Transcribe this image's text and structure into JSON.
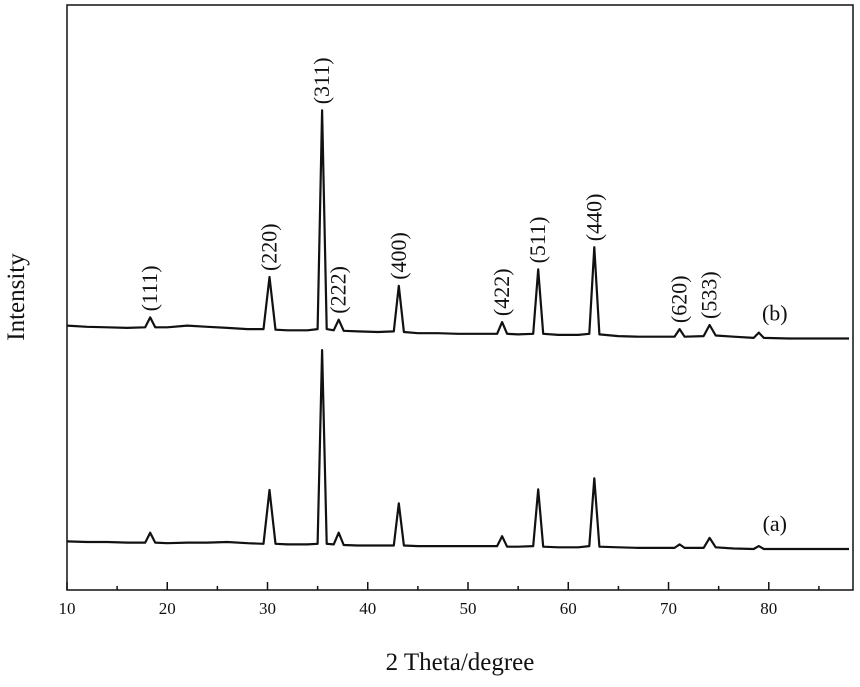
{
  "chart_data": {
    "type": "line",
    "xlabel": "2 Theta/degree",
    "ylabel": "Intensity",
    "xlim": [
      10,
      88.4
    ],
    "xticks": [
      10,
      20,
      30,
      40,
      50,
      60,
      70,
      80
    ],
    "xminorticks": [
      15,
      25,
      35,
      45,
      55,
      65,
      75,
      85
    ],
    "ylim": [
      0,
      100
    ],
    "x": [
      10,
      12,
      14,
      16,
      17.8,
      18.3,
      18.8,
      20,
      22,
      24,
      26,
      28,
      29.6,
      30.2,
      30.8,
      32,
      34,
      35.0,
      35.45,
      35.9,
      36.6,
      37.1,
      37.6,
      39,
      41,
      42.6,
      43.1,
      43.6,
      45,
      47,
      49,
      51,
      52.9,
      53.4,
      53.9,
      55,
      56.5,
      57.0,
      57.5,
      59,
      61,
      62.1,
      62.6,
      63.1,
      65,
      67,
      69,
      70.6,
      71.1,
      71.6,
      73.5,
      74.1,
      74.7,
      76.5,
      78.5,
      79.0,
      79.5,
      82,
      85,
      88
    ],
    "series": [
      {
        "name": "(b)",
        "color": "#111111",
        "values": [
          45.2,
          45.0,
          44.9,
          44.8,
          44.9,
          46.6,
          44.9,
          44.9,
          45.2,
          45.0,
          44.8,
          44.6,
          44.6,
          53.5,
          44.5,
          44.4,
          44.4,
          44.6,
          82.0,
          44.6,
          44.4,
          46.2,
          44.3,
          44.2,
          44.1,
          44.2,
          52.0,
          44.1,
          43.9,
          43.9,
          43.8,
          43.8,
          43.8,
          45.8,
          43.8,
          43.7,
          43.8,
          54.8,
          43.8,
          43.6,
          43.6,
          43.8,
          58.6,
          43.7,
          43.4,
          43.3,
          43.3,
          43.3,
          44.6,
          43.3,
          43.4,
          45.3,
          43.5,
          43.3,
          43.1,
          44.0,
          43.1,
          43.0,
          43.0,
          43.0
        ]
      },
      {
        "name": "(a)",
        "color": "#111111",
        "values": [
          8.3,
          8.2,
          8.2,
          8.1,
          8.1,
          9.8,
          8.1,
          8.0,
          8.1,
          8.1,
          8.2,
          8.0,
          7.9,
          17.1,
          7.9,
          7.8,
          7.8,
          7.9,
          41.0,
          7.9,
          7.8,
          9.8,
          7.7,
          7.6,
          7.6,
          7.6,
          14.8,
          7.6,
          7.5,
          7.5,
          7.5,
          7.5,
          7.5,
          9.2,
          7.4,
          7.4,
          7.5,
          17.2,
          7.4,
          7.3,
          7.3,
          7.5,
          19.1,
          7.4,
          7.3,
          7.2,
          7.2,
          7.2,
          7.8,
          7.2,
          7.2,
          8.9,
          7.3,
          7.1,
          7.0,
          7.5,
          7.0,
          7.0,
          7.0,
          7.0
        ]
      }
    ],
    "annotations": [
      {
        "text": "(111)",
        "x": 18.3
      },
      {
        "text": "(220)",
        "x": 30.2
      },
      {
        "text": "(311)",
        "x": 35.45
      },
      {
        "text": "(222)",
        "x": 37.1
      },
      {
        "text": "(400)",
        "x": 43.1
      },
      {
        "text": "(422)",
        "x": 53.4
      },
      {
        "text": "(511)",
        "x": 57.0
      },
      {
        "text": "(440)",
        "x": 62.6
      },
      {
        "text": "(620)",
        "x": 71.1
      },
      {
        "text": "(533)",
        "x": 74.1
      }
    ]
  }
}
